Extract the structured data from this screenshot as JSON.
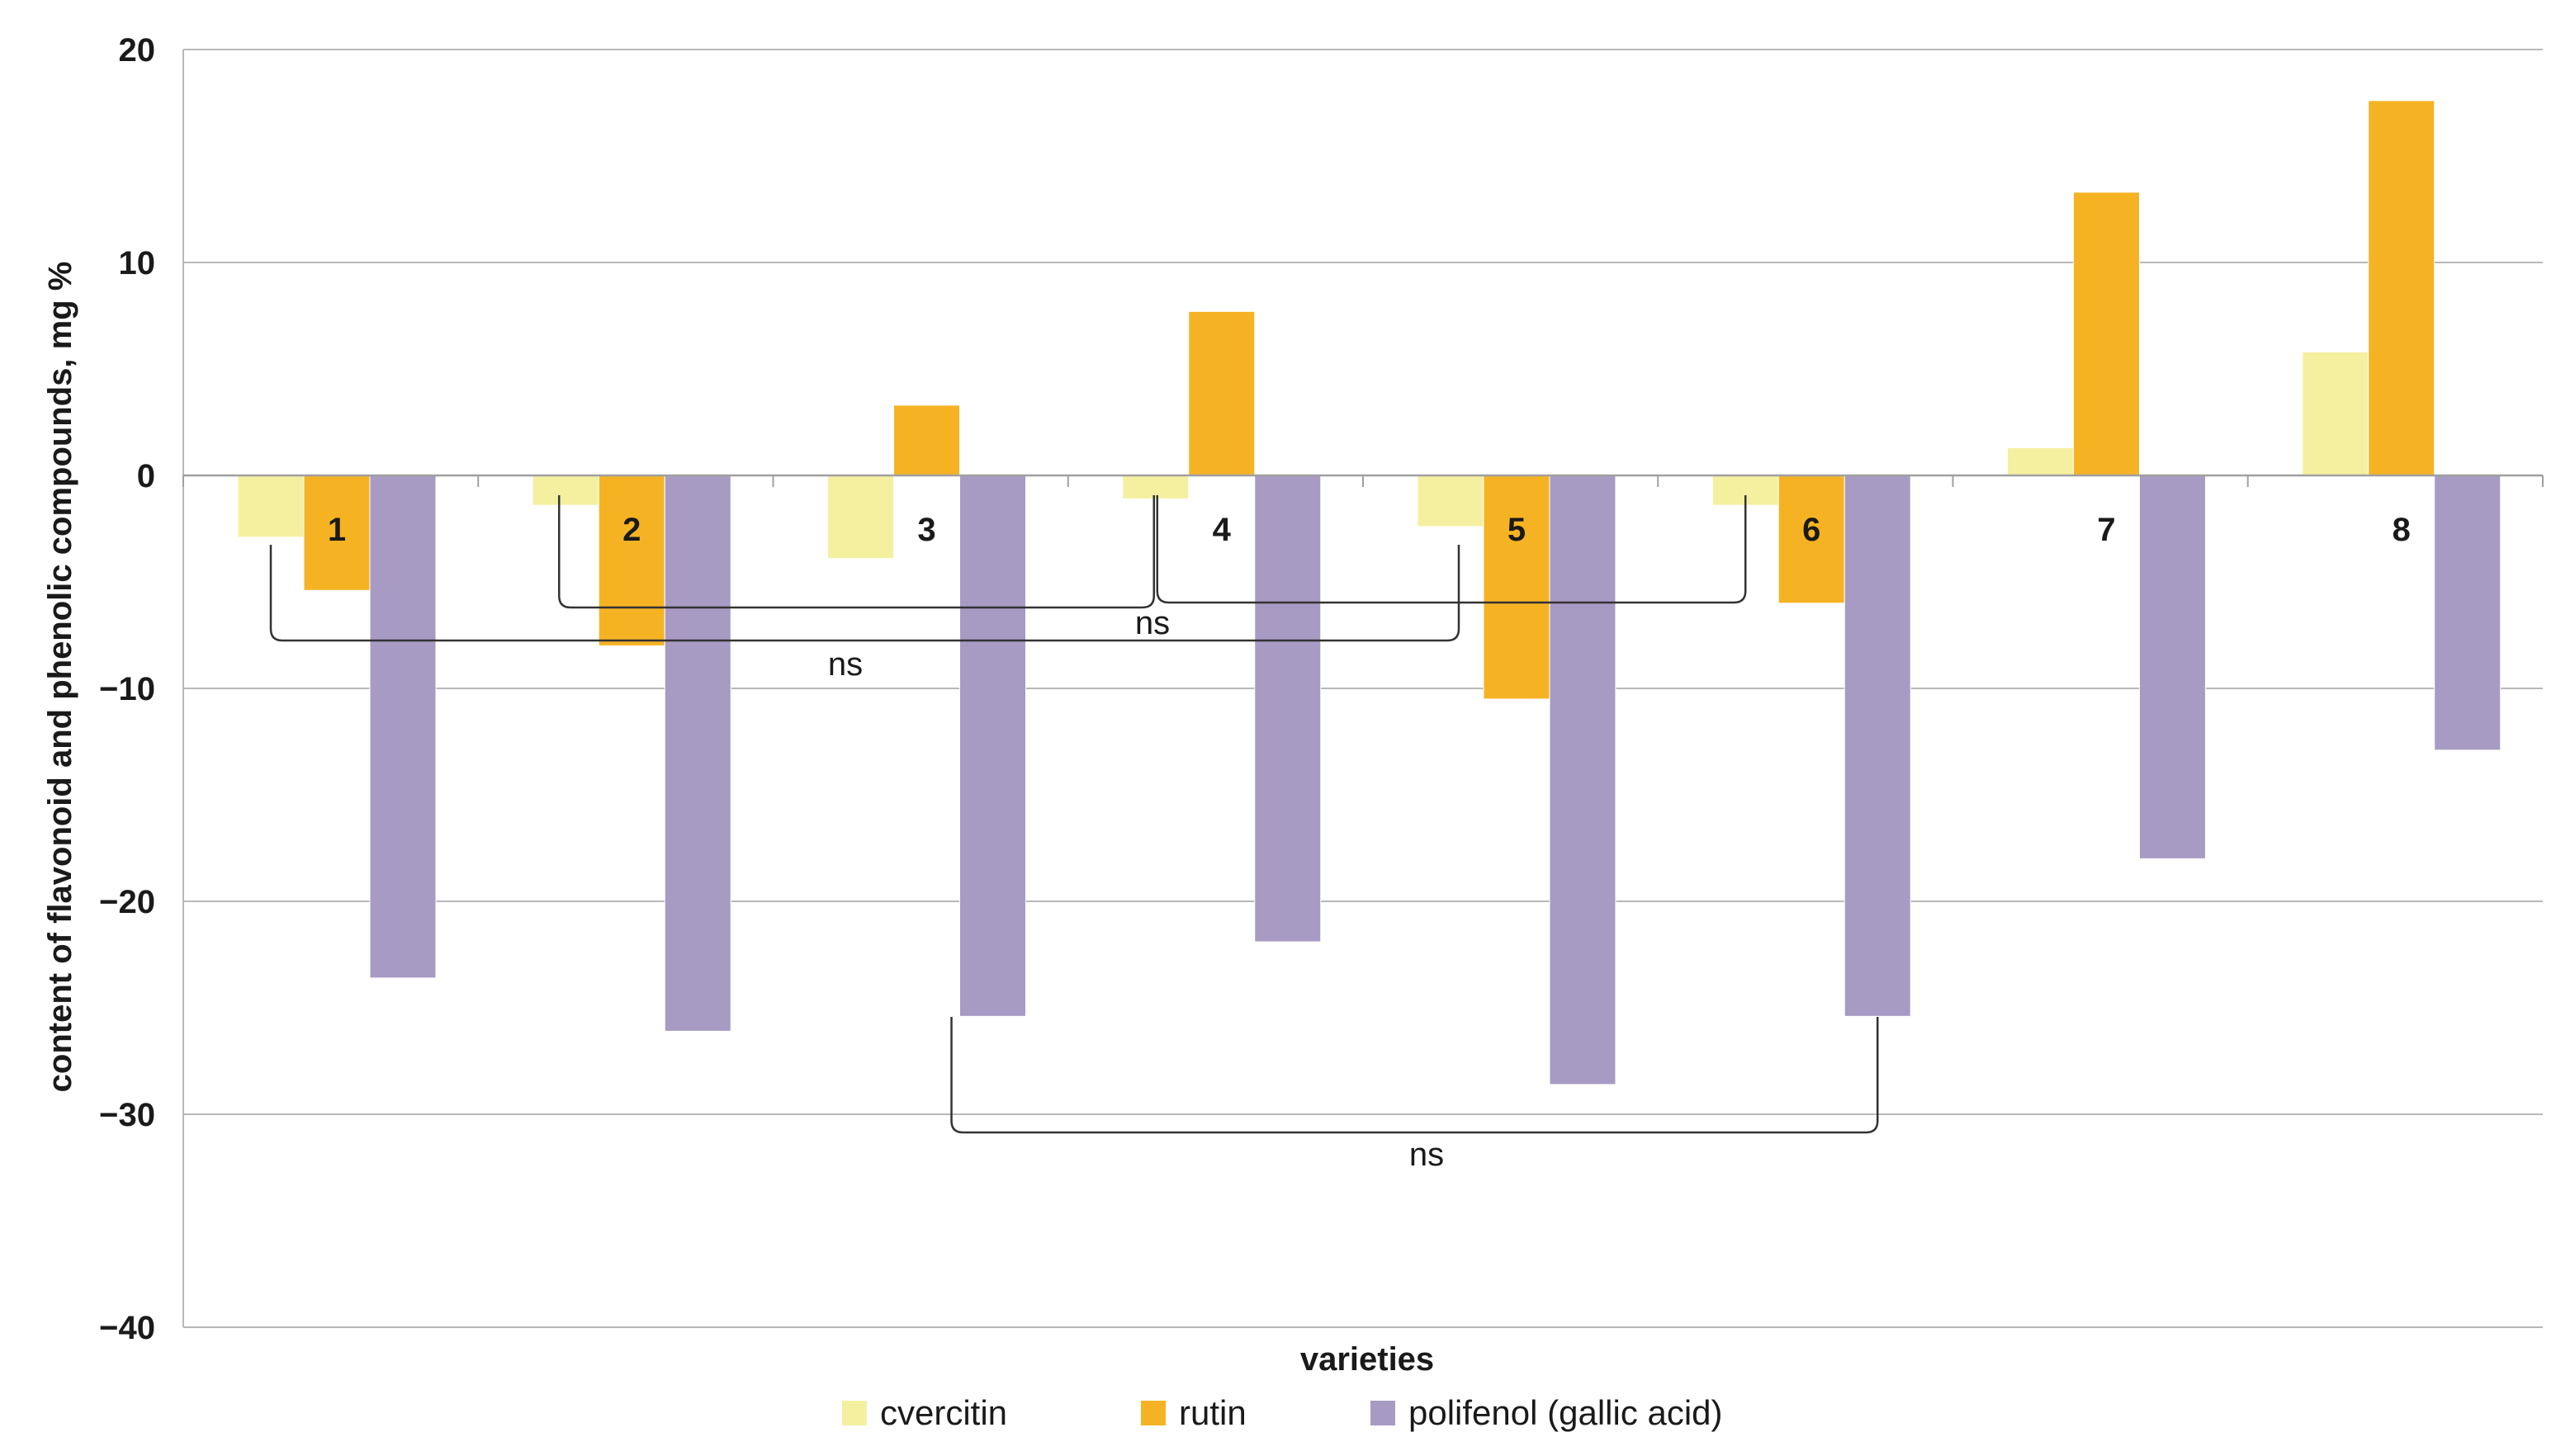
{
  "chart_data": {
    "type": "bar",
    "title": "",
    "xlabel": "varieties",
    "ylabel": "content of flavonoid and phenolic compounds, mg %",
    "ylim": [
      -40,
      20
    ],
    "yticks": [
      20,
      10,
      0,
      -10,
      -20,
      -30,
      -40
    ],
    "ytick_labels": [
      "20",
      "10",
      "0",
      "−10",
      "−20",
      "−30",
      "−40"
    ],
    "grid": true,
    "legend_position": "bottom",
    "categories": [
      "1",
      "2",
      "3",
      "4",
      "5",
      "6",
      "7",
      "8"
    ],
    "series": [
      {
        "name": "cvercitin",
        "color": "#f5f0a0",
        "values": [
          -2.9,
          -1.4,
          -3.9,
          -1.1,
          -2.4,
          -1.4,
          1.3,
          5.8
        ]
      },
      {
        "name": "rutin",
        "color": "#f5b324",
        "values": [
          -5.4,
          -8.0,
          3.3,
          7.7,
          -10.5,
          -6.0,
          13.3,
          17.6
        ]
      },
      {
        "name": "polifenol (gallic acid)",
        "color": "#a79bc4",
        "values": [
          -23.6,
          -26.1,
          -25.4,
          -21.9,
          -28.6,
          -25.4,
          -18.0,
          -12.9
        ]
      }
    ],
    "annotations": [
      {
        "text": "ns",
        "from_category": "1",
        "to_category": "5"
      },
      {
        "text": "ns",
        "from_category": "2",
        "to_category": "4"
      },
      {
        "text": "ns",
        "from_category": "4",
        "to_category": "6"
      },
      {
        "text": "ns",
        "from_category": "3",
        "to_category": "6"
      }
    ]
  }
}
